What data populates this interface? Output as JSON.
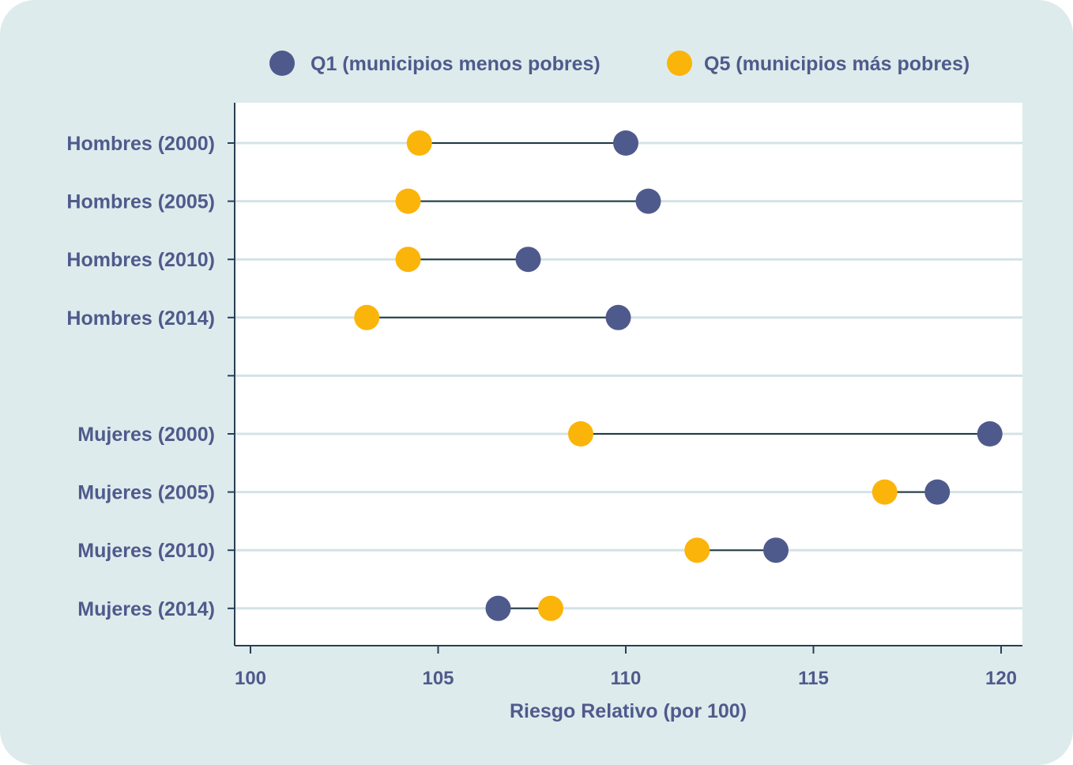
{
  "colors": {
    "background": "#deebec",
    "plot_background": "#ffffff",
    "gridline": "#d3e3e6",
    "axis": "#2a3f55",
    "connector": "#243a45",
    "q1": "#4f5a8c",
    "q5": "#fbb40a",
    "text": "#4f5a8c"
  },
  "chart_data": {
    "type": "dumbbell",
    "xlabel": "Riesgo Relativo (por 100)",
    "xlim": [
      99.6,
      120.6
    ],
    "xticks": [
      100,
      105,
      110,
      115,
      120
    ],
    "xtick_labels": [
      "100",
      "105",
      "110",
      "115",
      "120"
    ],
    "grid": true,
    "legend_position": "top",
    "legend": [
      {
        "key": "q1",
        "label": "Q1 (municipios menos pobres)"
      },
      {
        "key": "q5",
        "label": "Q5 (municipios más pobres)"
      }
    ],
    "categories": [
      "Hombres (2000)",
      "Hombres (2005)",
      "Hombres (2010)",
      "Hombres (2014)",
      "",
      "Mujeres (2000)",
      "Mujeres (2005)",
      "Mujeres (2010)",
      "Mujeres (2014)"
    ],
    "series": [
      {
        "name": "Q1 (municipios menos pobres)",
        "key": "q1",
        "values": [
          110.0,
          110.6,
          107.4,
          109.8,
          null,
          119.7,
          118.3,
          114.0,
          106.6
        ]
      },
      {
        "name": "Q5 (municipios más pobres)",
        "key": "q5",
        "values": [
          104.5,
          104.2,
          104.2,
          103.1,
          null,
          108.8,
          116.9,
          111.9,
          108.0
        ]
      }
    ]
  }
}
